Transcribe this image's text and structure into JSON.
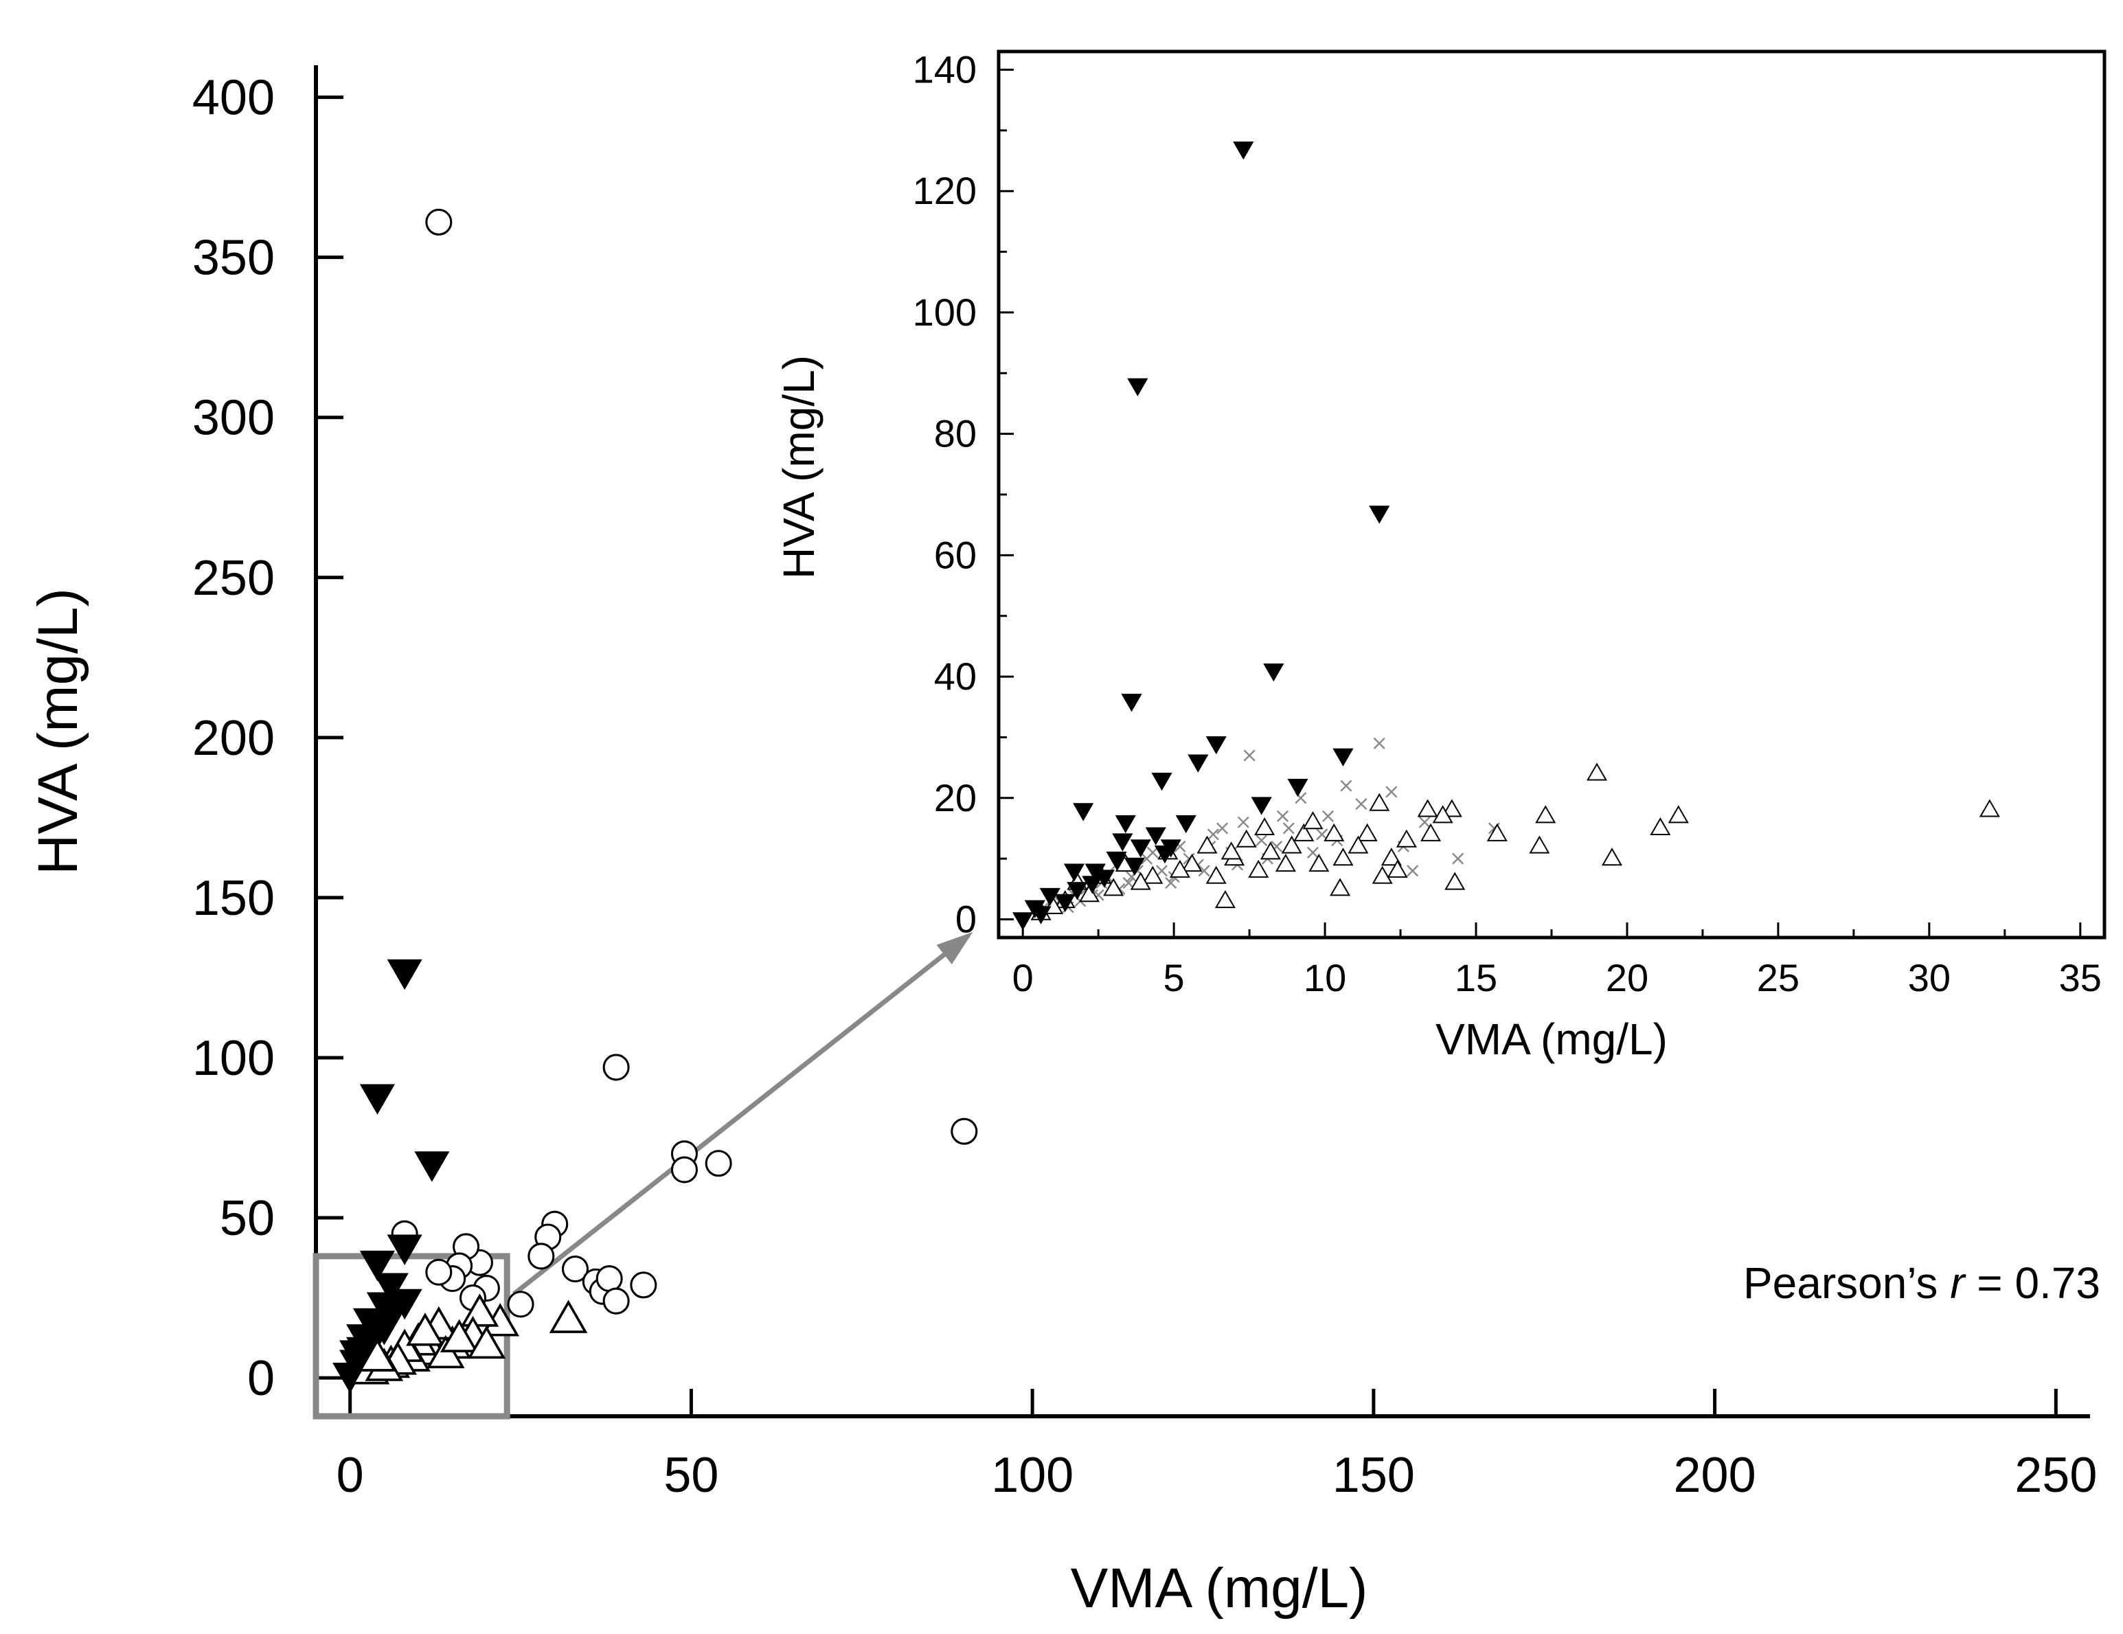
{
  "chart_data": [
    {
      "id": "main",
      "type": "scatter",
      "title": "",
      "xlabel": "VMA (mg/L)",
      "ylabel": "HVA (mg/L)",
      "xlim": [
        -5,
        255
      ],
      "ylim": [
        -12,
        410
      ],
      "xticks": [
        0,
        50,
        100,
        150,
        200,
        250
      ],
      "yticks": [
        0,
        50,
        100,
        150,
        200,
        250,
        300,
        350,
        400
      ],
      "annotation": {
        "prefix": "Pearson’s ",
        "var": "r",
        "suffix": " = 0.73"
      },
      "zoom_box": {
        "x": [
          -5,
          23
        ],
        "y": [
          -12,
          38
        ]
      },
      "series": [
        {
          "name": "open-circle",
          "marker": "circle-open",
          "color": "#000000",
          "x": [
            13,
            39,
            49,
            49,
            54,
            90,
            30,
            29,
            28,
            33,
            36,
            37,
            38,
            39,
            43,
            25,
            20,
            19,
            17,
            16,
            15,
            18,
            13,
            8
          ],
          "y": [
            361,
            97,
            70,
            65,
            67,
            77,
            48,
            44,
            38,
            34,
            30,
            27,
            31,
            24,
            29,
            23,
            28,
            36,
            41,
            35,
            31,
            25,
            33,
            45
          ]
        },
        {
          "name": "filled-down-triangle",
          "marker": "triangle-down-filled",
          "color": "#000000",
          "x": [
            8,
            4,
            12,
            8,
            4,
            6,
            8,
            3,
            5,
            2,
            4,
            6,
            1,
            3,
            0,
            1,
            2,
            5
          ],
          "y": [
            127,
            88,
            67,
            41,
            36,
            29,
            24,
            18,
            23,
            13,
            15,
            20,
            8,
            11,
            1,
            5,
            9,
            16
          ]
        },
        {
          "name": "open-triangle",
          "marker": "triangle-open",
          "color": "#000000",
          "x": [
            32,
            22,
            19,
            18,
            15,
            13,
            12,
            10,
            9,
            6,
            3,
            8,
            11,
            14,
            16,
            20,
            7,
            5,
            4
          ],
          "y": [
            18,
            17,
            20,
            13,
            10,
            16,
            8,
            11,
            6,
            4,
            2,
            9,
            14,
            7,
            12,
            10,
            5,
            3,
            6
          ]
        }
      ]
    },
    {
      "id": "inset",
      "type": "scatter",
      "title": "",
      "xlabel": "VMA (mg/L)",
      "ylabel": "HVA (mg/L)",
      "xlim": [
        -0.8,
        35.8
      ],
      "ylim": [
        -3,
        143
      ],
      "xticks": [
        0,
        5,
        10,
        15,
        20,
        25,
        30,
        35
      ],
      "yticks": [
        0,
        20,
        40,
        60,
        80,
        100,
        120,
        140
      ],
      "series": [
        {
          "name": "filled-down-triangle",
          "marker": "triangle-down-filled",
          "color": "#000000",
          "x": [
            7.3,
            3.8,
            11.8,
            8.3,
            3.6,
            6.4,
            10.6,
            5.8,
            4.6,
            9.1,
            2.0,
            3.4,
            5.4,
            4.4,
            7.9,
            3.9,
            4.9,
            1.7,
            3.1,
            3.7,
            4.7,
            2.3,
            2.7,
            1.4,
            3.3,
            0.9,
            1.8,
            0.0,
            0.6,
            0.4,
            2.4
          ],
          "y": [
            127,
            88,
            67,
            41,
            36,
            29,
            27,
            26,
            23,
            22,
            18,
            16,
            16,
            14,
            19,
            12,
            12,
            8,
            10,
            9,
            11,
            6,
            7,
            3,
            13,
            4,
            5,
            0,
            1,
            2,
            8
          ]
        },
        {
          "name": "open-triangle",
          "marker": "triangle-open",
          "color": "#000000",
          "x": [
            32.0,
            19.0,
            21.7,
            21.1,
            17.3,
            17.1,
            19.5,
            15.7,
            14.3,
            14.2,
            13.9,
            13.4,
            13.5,
            12.7,
            12.2,
            11.8,
            11.4,
            12.4,
            11.1,
            10.5,
            10.6,
            10.3,
            9.8,
            9.3,
            8.9,
            8.7,
            8.2,
            7.8,
            7.4,
            7.0,
            6.7,
            6.4,
            6.1,
            5.6,
            5.2,
            4.8,
            4.3,
            3.9,
            3.4,
            3.0,
            2.6,
            2.2,
            1.8,
            1.4,
            1.0,
            0.6,
            9.6,
            11.9,
            8.0,
            6.9
          ],
          "y": [
            18,
            24,
            17,
            15,
            17,
            12,
            10,
            14,
            6,
            18,
            17,
            18,
            14,
            13,
            10,
            19,
            14,
            8,
            12,
            5,
            10,
            14,
            9,
            14,
            12,
            9,
            11,
            8,
            13,
            10,
            3,
            7,
            12,
            9,
            8,
            11,
            7,
            6,
            9,
            5,
            7,
            4,
            6,
            3,
            2,
            1,
            16,
            7,
            15,
            11
          ]
        },
        {
          "name": "gray-x",
          "marker": "x",
          "color": "#888888",
          "x": [
            11.8,
            7.5,
            9.2,
            10.7,
            12.2,
            13.3,
            14.4,
            15.6,
            12.9,
            10.1,
            8.8,
            7.9,
            6.9,
            6.3,
            5.8,
            5.2,
            4.6,
            4.1,
            3.6,
            3.1,
            2.6,
            2.1,
            1.7,
            1.2,
            0.7,
            11.2,
            10.4,
            9.6,
            8.4,
            7.1,
            6.6,
            5.5,
            4.9,
            4.3,
            3.8,
            3.2,
            2.8,
            2.3,
            1.9,
            9.9,
            8.1,
            6.0,
            5.0,
            3.5,
            2.5,
            1.5,
            8.6,
            7.3,
            6.2,
            12.6
          ],
          "y": [
            29,
            27,
            20,
            22,
            21,
            16,
            10,
            15,
            8,
            17,
            15,
            13,
            11,
            14,
            9,
            12,
            8,
            10,
            7,
            9,
            6,
            5,
            4,
            3,
            2,
            19,
            13,
            11,
            12,
            9,
            15,
            10,
            6,
            11,
            8,
            5,
            7,
            4,
            3,
            14,
            10,
            8,
            7,
            6,
            4,
            2,
            17,
            16,
            12,
            12
          ]
        }
      ]
    }
  ]
}
